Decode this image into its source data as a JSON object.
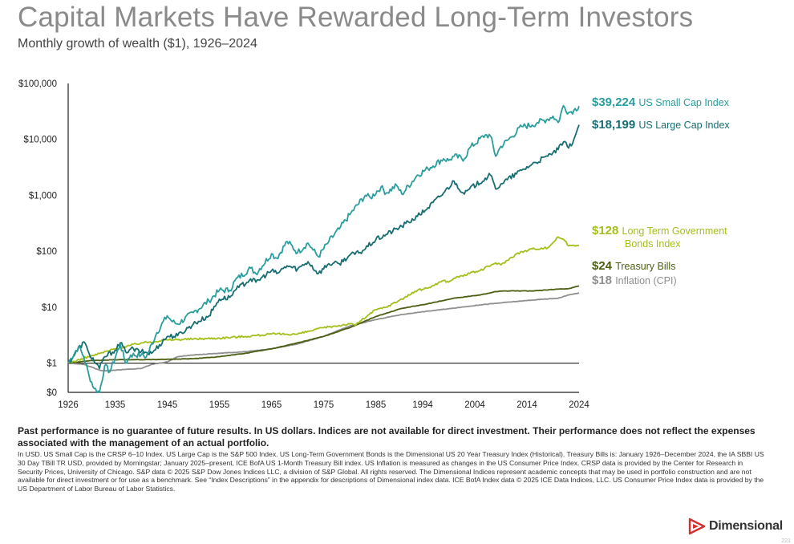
{
  "title": "Capital Markets Have Rewarded Long-Term Investors",
  "subtitle": "Monthly growth of wealth ($1), 1926–2024",
  "chart_data": {
    "type": "line",
    "y_scale": "log",
    "ylim": [
      0.3,
      100000
    ],
    "xlim": [
      1926,
      2024
    ],
    "y_ticks": [
      {
        "value": 0.3,
        "label": "$0"
      },
      {
        "value": 1,
        "label": "$1"
      },
      {
        "value": 10,
        "label": "$10"
      },
      {
        "value": 100,
        "label": "$100"
      },
      {
        "value": 1000,
        "label": "$1,000"
      },
      {
        "value": 10000,
        "label": "$10,000"
      },
      {
        "value": 100000,
        "label": "$100,000"
      }
    ],
    "x_ticks": [
      {
        "value": 1926,
        "label": "1926"
      },
      {
        "value": 1935,
        "label": "1935"
      },
      {
        "value": 1945,
        "label": "1945"
      },
      {
        "value": 1955,
        "label": "1955"
      },
      {
        "value": 1965,
        "label": "1965"
      },
      {
        "value": 1975,
        "label": "1975"
      },
      {
        "value": 1985,
        "label": "1985"
      },
      {
        "value": 1994,
        "label": "1994"
      },
      {
        "value": 2004,
        "label": "2004"
      },
      {
        "value": 2014,
        "label": "2014"
      },
      {
        "value": 2024,
        "label": "2024"
      }
    ],
    "reference_line": 1,
    "series": [
      {
        "name": "US Small Cap Index",
        "final_label": "$39,224",
        "name_lines": [
          "US Small Cap Index"
        ],
        "color": "#2a9d9d",
        "points": [
          [
            1926,
            1
          ],
          [
            1928,
            2.0
          ],
          [
            1929,
            1.3
          ],
          [
            1930,
            0.6
          ],
          [
            1931,
            0.35
          ],
          [
            1932,
            0.3
          ],
          [
            1933,
            0.9
          ],
          [
            1934,
            0.7
          ],
          [
            1936,
            2.2
          ],
          [
            1937,
            1.0
          ],
          [
            1938,
            1.4
          ],
          [
            1940,
            1.4
          ],
          [
            1941,
            1.3
          ],
          [
            1943,
            3.5
          ],
          [
            1945,
            7.0
          ],
          [
            1946,
            5.5
          ],
          [
            1947,
            5.0
          ],
          [
            1950,
            8
          ],
          [
            1953,
            13
          ],
          [
            1955,
            20
          ],
          [
            1957,
            20
          ],
          [
            1958,
            30
          ],
          [
            1961,
            50
          ],
          [
            1962,
            40
          ],
          [
            1965,
            90
          ],
          [
            1966,
            75
          ],
          [
            1968,
            150
          ],
          [
            1970,
            95
          ],
          [
            1972,
            140
          ],
          [
            1973,
            105
          ],
          [
            1974,
            80
          ],
          [
            1976,
            150
          ],
          [
            1978,
            250
          ],
          [
            1980,
            450
          ],
          [
            1983,
            1000
          ],
          [
            1984,
            900
          ],
          [
            1986,
            1400
          ],
          [
            1987,
            1100
          ],
          [
            1989,
            1500
          ],
          [
            1990,
            1050
          ],
          [
            1993,
            2300
          ],
          [
            1995,
            3000
          ],
          [
            1998,
            4500
          ],
          [
            1999,
            4200
          ],
          [
            2000,
            5000
          ],
          [
            2002,
            4500
          ],
          [
            2003,
            7000
          ],
          [
            2006,
            12000
          ],
          [
            2007,
            11500
          ],
          [
            2008,
            5000
          ],
          [
            2009,
            7500
          ],
          [
            2011,
            11000
          ],
          [
            2013,
            17000
          ],
          [
            2015,
            18000
          ],
          [
            2016,
            20000
          ],
          [
            2018,
            23000
          ],
          [
            2019,
            26000
          ],
          [
            2020,
            20000
          ],
          [
            2021,
            40000
          ],
          [
            2022,
            30000
          ],
          [
            2023,
            33000
          ],
          [
            2024,
            39224
          ]
        ]
      },
      {
        "name": "US Large Cap Index",
        "final_label": "$18,199",
        "name_lines": [
          "US Large Cap Index"
        ],
        "color": "#166e72",
        "points": [
          [
            1926,
            1
          ],
          [
            1929,
            2.4
          ],
          [
            1930,
            1.5
          ],
          [
            1932,
            0.8
          ],
          [
            1933,
            1.3
          ],
          [
            1935,
            1.7
          ],
          [
            1936,
            2.3
          ],
          [
            1937,
            1.6
          ],
          [
            1938,
            1.8
          ],
          [
            1940,
            1.6
          ],
          [
            1942,
            1.5
          ],
          [
            1945,
            3.0
          ],
          [
            1947,
            3.1
          ],
          [
            1950,
            5
          ],
          [
            1953,
            7
          ],
          [
            1955,
            14
          ],
          [
            1957,
            15
          ],
          [
            1958,
            20
          ],
          [
            1961,
            32
          ],
          [
            1962,
            28
          ],
          [
            1965,
            45
          ],
          [
            1966,
            40
          ],
          [
            1968,
            55
          ],
          [
            1970,
            48
          ],
          [
            1972,
            65
          ],
          [
            1974,
            40
          ],
          [
            1976,
            60
          ],
          [
            1978,
            60
          ],
          [
            1980,
            85
          ],
          [
            1982,
            95
          ],
          [
            1985,
            160
          ],
          [
            1987,
            200
          ],
          [
            1990,
            280
          ],
          [
            1993,
            420
          ],
          [
            1995,
            600
          ],
          [
            1998,
            1100
          ],
          [
            2000,
            1800
          ],
          [
            2002,
            1050
          ],
          [
            2003,
            1300
          ],
          [
            2007,
            2300
          ],
          [
            2008,
            1300
          ],
          [
            2009,
            1600
          ],
          [
            2013,
            2800
          ],
          [
            2015,
            3600
          ],
          [
            2018,
            5000
          ],
          [
            2019,
            5800
          ],
          [
            2020,
            6600
          ],
          [
            2021,
            9000
          ],
          [
            2022,
            7000
          ],
          [
            2023,
            10000
          ],
          [
            2024,
            18199
          ]
        ]
      },
      {
        "name": "Long Term Government Bonds Index",
        "final_label": "$128",
        "name_lines": [
          "Long Term Government",
          "Bonds Index"
        ],
        "color": "#a3bf1a",
        "points": [
          [
            1926,
            1
          ],
          [
            1930,
            1.3
          ],
          [
            1935,
            1.8
          ],
          [
            1940,
            2.3
          ],
          [
            1945,
            2.6
          ],
          [
            1950,
            2.7
          ],
          [
            1955,
            2.8
          ],
          [
            1960,
            3.0
          ],
          [
            1965,
            3.3
          ],
          [
            1970,
            3.3
          ],
          [
            1975,
            4.3
          ],
          [
            1980,
            5.0
          ],
          [
            1981,
            4.8
          ],
          [
            1985,
            9
          ],
          [
            1987,
            10
          ],
          [
            1990,
            14
          ],
          [
            1993,
            20
          ],
          [
            1995,
            22
          ],
          [
            1998,
            30
          ],
          [
            1999,
            28
          ],
          [
            2000,
            33
          ],
          [
            2003,
            40
          ],
          [
            2005,
            45
          ],
          [
            2008,
            62
          ],
          [
            2009,
            57
          ],
          [
            2012,
            90
          ],
          [
            2015,
            110
          ],
          [
            2018,
            115
          ],
          [
            2020,
            180
          ],
          [
            2021,
            165
          ],
          [
            2022,
            125
          ],
          [
            2023,
            128
          ],
          [
            2024,
            128
          ]
        ]
      },
      {
        "name": "Treasury Bills",
        "final_label": "$24",
        "name_lines": [
          "Treasury Bills"
        ],
        "color": "#4b5e12",
        "points": [
          [
            1926,
            1
          ],
          [
            1930,
            1.1
          ],
          [
            1935,
            1.15
          ],
          [
            1940,
            1.15
          ],
          [
            1945,
            1.17
          ],
          [
            1950,
            1.2
          ],
          [
            1955,
            1.3
          ],
          [
            1960,
            1.5
          ],
          [
            1965,
            1.8
          ],
          [
            1970,
            2.3
          ],
          [
            1975,
            3.0
          ],
          [
            1980,
            4.3
          ],
          [
            1985,
            6.8
          ],
          [
            1990,
            9.5
          ],
          [
            1995,
            11.5
          ],
          [
            2000,
            14.5
          ],
          [
            2005,
            16.5
          ],
          [
            2008,
            19
          ],
          [
            2010,
            19.5
          ],
          [
            2015,
            19.5
          ],
          [
            2020,
            21
          ],
          [
            2022,
            21.5
          ],
          [
            2024,
            24
          ]
        ]
      },
      {
        "name": "Inflation (CPI)",
        "final_label": "$18",
        "name_lines": [
          "Inflation (CPI)"
        ],
        "color": "#8f8f8f",
        "points": [
          [
            1926,
            1
          ],
          [
            1929,
            0.95
          ],
          [
            1932,
            0.75
          ],
          [
            1933,
            0.73
          ],
          [
            1940,
            0.8
          ],
          [
            1942,
            0.95
          ],
          [
            1945,
            1.05
          ],
          [
            1947,
            1.3
          ],
          [
            1950,
            1.4
          ],
          [
            1955,
            1.5
          ],
          [
            1960,
            1.6
          ],
          [
            1965,
            1.8
          ],
          [
            1970,
            2.2
          ],
          [
            1975,
            3.0
          ],
          [
            1980,
            4.6
          ],
          [
            1985,
            6.0
          ],
          [
            1990,
            7.4
          ],
          [
            1995,
            8.5
          ],
          [
            2000,
            9.6
          ],
          [
            2005,
            11
          ],
          [
            2010,
            12.2
          ],
          [
            2015,
            13.4
          ],
          [
            2020,
            14.5
          ],
          [
            2022,
            16.5
          ],
          [
            2024,
            18
          ]
        ]
      }
    ]
  },
  "disclaimer": "Past performance is no guarantee of future results. In US dollars. Indices are not available for direct investment. Their performance does not reflect the expenses associated with the management of an actual portfolio.",
  "footnote": "In USD. US Small Cap is the CRSP 6–10 Index. US Large Cap is the S&P 500 Index. US Long-Term Government Bonds is the Dimensional US 20 Year Treasury Index (Historical). Treasury Bills is: January 1926–December 2024, the IA SBBI US 30 Day TBill TR USD, provided by Morningstar; January 2025–present, ICE BofA US 1-Month Treasury Bill index. US Inflation is measured as changes in the US Consumer Price Index. CRSP data is provided by the Center for Research in Security Prices, University of Chicago. S&P data © 2025 S&P Dow Jones Indices LLC, a division of S&P Global. All rights reserved. The Dimensional Indices represent academic concepts that may be used in portfolio construction and are not available for direct investment or for use as a benchmark. See “Index Descriptions” in the appendix for descriptions of Dimensional index data. ICE BofA Index data © 2025 ICE Data Indices, LLC. US Consumer Price Index data is provided by the US Department of Labor Bureau of Labor Statistics.",
  "logo": {
    "text": "Dimensional",
    "icon": "dimensional-logo-icon",
    "color": "#d62f2f"
  },
  "page_number": "221"
}
